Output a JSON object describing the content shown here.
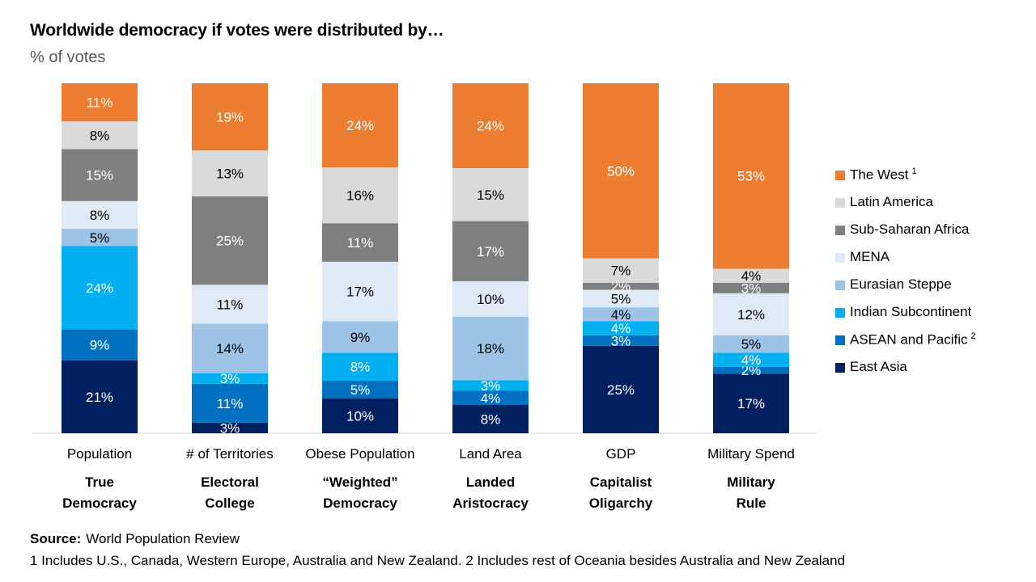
{
  "header": {
    "title": "Worldwide democracy if votes were distributed by…",
    "subtitle": "% of votes"
  },
  "chart_data": {
    "type": "bar",
    "stacked": true,
    "orientation": "vertical",
    "categories": [
      "Population",
      "# of Territories",
      "Obese Population",
      "Land Area",
      "GDP",
      "Military Spend"
    ],
    "systems": [
      {
        "line1": "True",
        "line2": "Democracy"
      },
      {
        "line1": "Electoral",
        "line2": "College"
      },
      {
        "line1": "“Weighted”",
        "line2": "Democracy"
      },
      {
        "line1": "Landed",
        "line2": "Aristocracy"
      },
      {
        "line1": "Capitalist",
        "line2": "Oligarchy"
      },
      {
        "line1": "Military",
        "line2": "Rule"
      }
    ],
    "series": [
      {
        "name": "East Asia",
        "color": "#002060",
        "values": [
          21,
          3,
          10,
          8,
          25,
          17
        ]
      },
      {
        "name": "ASEAN and Pacific",
        "note": "2",
        "color": "#0070C0",
        "values": [
          9,
          11,
          5,
          4,
          3,
          2
        ]
      },
      {
        "name": "Indian Subcontinent",
        "color": "#00B0F0",
        "values": [
          24,
          3,
          8,
          3,
          4,
          4
        ]
      },
      {
        "name": "Eurasian Steppe",
        "color": "#9DC3E6",
        "values": [
          5,
          14,
          9,
          18,
          4,
          5
        ]
      },
      {
        "name": "MENA",
        "color": "#DEEBF7",
        "values": [
          8,
          11,
          17,
          10,
          5,
          12
        ]
      },
      {
        "name": "Sub-Saharan Africa",
        "color": "#7F7F7F",
        "values": [
          15,
          25,
          11,
          17,
          2,
          3
        ]
      },
      {
        "name": "Latin America",
        "color": "#D9D9D9",
        "values": [
          8,
          13,
          16,
          15,
          7,
          4
        ]
      },
      {
        "name": "The West",
        "note": "1",
        "color": "#ED7D31",
        "values": [
          11,
          19,
          24,
          24,
          50,
          53
        ]
      }
    ],
    "value_suffix": "%",
    "grid": false,
    "legend_position": "right"
  },
  "footer": {
    "source_label": "Source:",
    "source_text": "World Population Review",
    "footnote": "1 Includes U.S., Canada, Western Europe, Australia and New Zealand. 2 Includes rest of Oceania besides Australia and New Zealand"
  }
}
